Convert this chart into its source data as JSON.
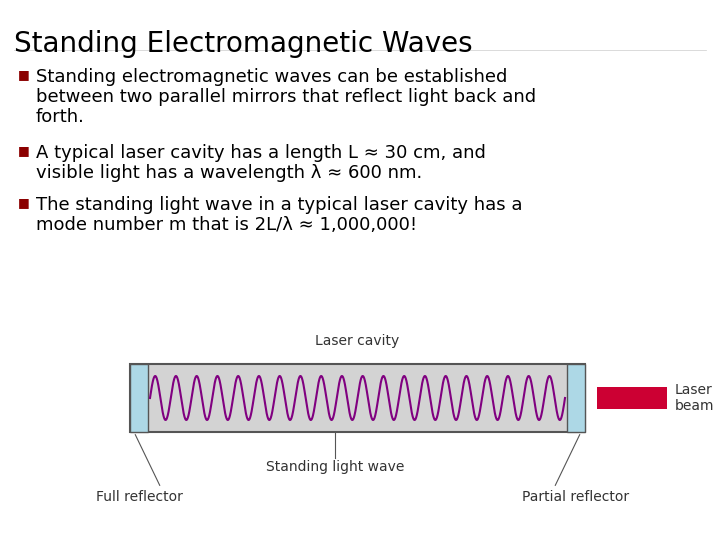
{
  "title": "Standing Electromagnetic Waves",
  "b1_line1": "Standing electromagnetic waves can be established",
  "b1_line2": "between two parallel mirrors that reflect light back and",
  "b1_line3": "forth.",
  "b2_line1": "A typical laser cavity has a length L ≈ 30 cm, and",
  "b2_line2": "visible light has a wavelength λ ≈ 600 nm.",
  "b3_line1": "The standing light wave in a typical laser cavity has a",
  "b3_line2": "mode number m that is 2L/λ ≈ 1,000,000!",
  "label_laser_cavity": "Laser cavity",
  "label_standing_wave": "Standing light wave",
  "label_full_reflector": "Full reflector",
  "label_partial_reflector": "Partial reflector",
  "label_laser_beam": "Laser\nbeam",
  "bg_color": "#ffffff",
  "title_color": "#000000",
  "bullet_color": "#000000",
  "bullet_square_color": "#8B0000",
  "cavity_fill": "#d3d3d3",
  "cavity_border": "#555555",
  "mirror_color": "#add8e6",
  "wave_color": "#800080",
  "laser_beam_color": "#cc0033",
  "annotation_color": "#333333",
  "title_fontsize": 20,
  "body_fontsize": 13,
  "diagram_label_fontsize": 10
}
